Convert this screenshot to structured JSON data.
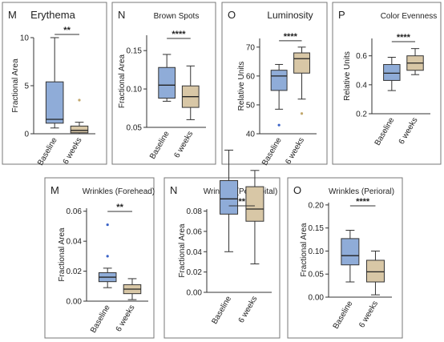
{
  "colors": {
    "baseline": "#8facd8",
    "six_weeks": "#d8c7a6",
    "frame": "#777777",
    "outlier_blue": "#3a62c7",
    "outlier_tan": "#c2a86d"
  },
  "chart_data": [
    {
      "type": "box",
      "panel_letter": "M",
      "title": "Erythema",
      "ylabel": "Fractional Area",
      "ylim": [
        0,
        10
      ],
      "yticks": [
        "0",
        "5",
        "10"
      ],
      "categories": [
        "Baseline",
        "6 weeks"
      ],
      "significance": "**",
      "series": [
        {
          "name": "Baseline",
          "whisker_low": 0.6,
          "q1": 1.1,
          "median": 1.5,
          "q3": 5.4,
          "whisker_high": 10.0,
          "outliers": []
        },
        {
          "name": "6 weeks",
          "whisker_low": 0.0,
          "q1": 0.1,
          "median": 0.35,
          "q3": 0.8,
          "whisker_high": 1.2,
          "outliers": [
            3.5
          ]
        }
      ]
    },
    {
      "type": "box",
      "panel_letter": "N",
      "title": "Brown Spots",
      "ylabel": "Fractional Area",
      "ylim": [
        0.05,
        0.17
      ],
      "yticks": [
        "0.05",
        "0.10",
        "0.15"
      ],
      "categories": [
        "Baseline",
        "6 weeks"
      ],
      "significance": "****",
      "series": [
        {
          "name": "Baseline",
          "whisker_low": 0.084,
          "q1": 0.088,
          "median": 0.105,
          "q3": 0.128,
          "whisker_high": 0.145,
          "outliers": []
        },
        {
          "name": "6 weeks",
          "whisker_low": 0.06,
          "q1": 0.076,
          "median": 0.09,
          "q3": 0.104,
          "whisker_high": 0.13,
          "outliers": []
        }
      ]
    },
    {
      "type": "box",
      "panel_letter": "O",
      "title": "Luminosity",
      "ylabel": "Relative Units",
      "ylim": [
        40,
        73
      ],
      "yticks": [
        "40",
        "50",
        "60",
        "70"
      ],
      "categories": [
        "Baseline",
        "6 weeks"
      ],
      "significance": "****",
      "series": [
        {
          "name": "Baseline",
          "whisker_low": 48.5,
          "q1": 55,
          "median": 60,
          "q3": 62,
          "whisker_high": 64,
          "outliers": [
            43
          ]
        },
        {
          "name": "6 weeks",
          "whisker_low": 52,
          "q1": 61,
          "median": 66,
          "q3": 68,
          "whisker_high": 70,
          "outliers": [
            47
          ]
        }
      ]
    },
    {
      "type": "box",
      "panel_letter": "P",
      "title": "Color Evenness",
      "ylabel": "Relative Units",
      "ylim": [
        0.2,
        0.72
      ],
      "yticks": [
        "0.2",
        "0.4",
        "0.6"
      ],
      "categories": [
        "Baseline",
        "6 weeks"
      ],
      "significance": "****",
      "series": [
        {
          "name": "Baseline",
          "whisker_low": 0.36,
          "q1": 0.43,
          "median": 0.48,
          "q3": 0.54,
          "whisker_high": 0.59,
          "outliers": []
        },
        {
          "name": "6 weeks",
          "whisker_low": 0.47,
          "q1": 0.5,
          "median": 0.55,
          "q3": 0.6,
          "whisker_high": 0.65,
          "outliers": []
        }
      ]
    },
    {
      "type": "box",
      "panel_letter": "M",
      "title": "Wrinkles (Forehead)",
      "ylabel": "Fractional Area",
      "ylim": [
        0,
        0.062
      ],
      "yticks": [
        "0.00",
        "0.02",
        "0.04",
        "0.06"
      ],
      "categories": [
        "Baseline",
        "6 weeks"
      ],
      "significance": "**",
      "series": [
        {
          "name": "Baseline",
          "whisker_low": 0.009,
          "q1": 0.013,
          "median": 0.016,
          "q3": 0.019,
          "whisker_high": 0.022,
          "outliers": [
            0.051,
            0.03
          ]
        },
        {
          "name": "6 weeks",
          "whisker_low": 0.001,
          "q1": 0.005,
          "median": 0.008,
          "q3": 0.011,
          "whisker_high": 0.015,
          "outliers": []
        }
      ]
    },
    {
      "type": "box",
      "panel_letter": "N",
      "title": "Wrinkles (Periorbital)",
      "ylabel": "Fractional Area",
      "ylim": [
        0,
        0.082
      ],
      "yticks": [
        "0.00",
        "0.02",
        "0.04",
        "0.06",
        "0.08"
      ],
      "categories": [
        "Baseline",
        "6 weeks"
      ],
      "significance": "**",
      "series": [
        {
          "name": "Baseline",
          "whisker_low": 0.04,
          "q1": 0.077,
          "median": 0.092,
          "q3": 0.11,
          "whisker_high": 0.14,
          "outliers": []
        },
        {
          "name": "6 weeks",
          "whisker_low": 0.028,
          "q1": 0.07,
          "median": 0.082,
          "q3": 0.104,
          "whisker_high": 0.12,
          "outliers": []
        }
      ]
    },
    {
      "type": "box",
      "panel_letter": "O",
      "title": "Wrinkles (Perioral)",
      "ylabel": "Fractional Area",
      "ylim": [
        0,
        0.205
      ],
      "yticks": [
        "0.00",
        "0.05",
        "0.10",
        "0.15",
        "0.20"
      ],
      "categories": [
        "Baseline",
        "6 weeks"
      ],
      "significance": "****",
      "series": [
        {
          "name": "Baseline",
          "whisker_low": 0.033,
          "q1": 0.07,
          "median": 0.09,
          "q3": 0.127,
          "whisker_high": 0.145,
          "outliers": []
        },
        {
          "name": "6 weeks",
          "whisker_low": 0.005,
          "q1": 0.033,
          "median": 0.055,
          "q3": 0.08,
          "whisker_high": 0.1,
          "outliers": []
        }
      ]
    }
  ]
}
